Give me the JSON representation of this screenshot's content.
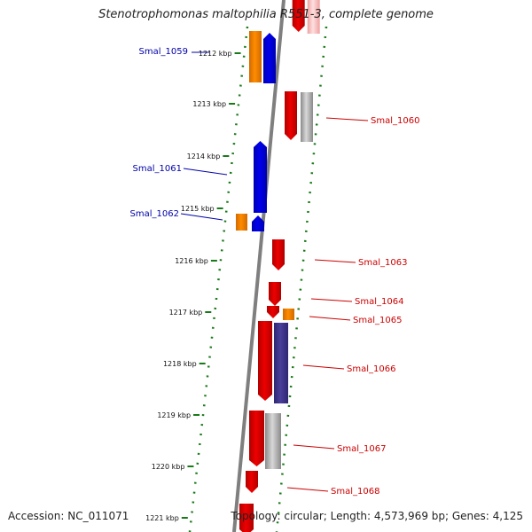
{
  "title": "Stenotrophomonas maltophilia R551-3, complete genome",
  "footer": {
    "accession": "Accession: NC_011071",
    "topology": "Topology: circular; Length: 4,573,969 bp; Genes: 4,125"
  },
  "colors": {
    "forward_label": "#0000aa",
    "reverse_label": "#cc0000",
    "backbone": "#7f7f7f",
    "tick": "#1a7a1a",
    "forward_gene": "#0000ee",
    "reverse_gene": "#ee0000",
    "orange_gene": "#ff8c00",
    "grey_gene": "#b0b0b0",
    "purple_gene": "#4a3f9a"
  },
  "ticks": [
    "1212 kbp",
    "1213 kbp",
    "1214 kbp",
    "1215 kbp",
    "1216 kbp",
    "1217 kbp",
    "1218 kbp",
    "1219 kbp",
    "1220 kbp",
    "1221 kbp"
  ],
  "genes": [
    {
      "name": "Smal_1059",
      "strand": "forward"
    },
    {
      "name": "Smal_1060",
      "strand": "reverse"
    },
    {
      "name": "Smal_1061",
      "strand": "forward"
    },
    {
      "name": "Smal_1062",
      "strand": "forward"
    },
    {
      "name": "Smal_1063",
      "strand": "reverse"
    },
    {
      "name": "Smal_1064",
      "strand": "reverse"
    },
    {
      "name": "Smal_1065",
      "strand": "reverse"
    },
    {
      "name": "Smal_1066",
      "strand": "reverse"
    },
    {
      "name": "Smal_1067",
      "strand": "reverse"
    },
    {
      "name": "Smal_1068",
      "strand": "reverse"
    }
  ]
}
